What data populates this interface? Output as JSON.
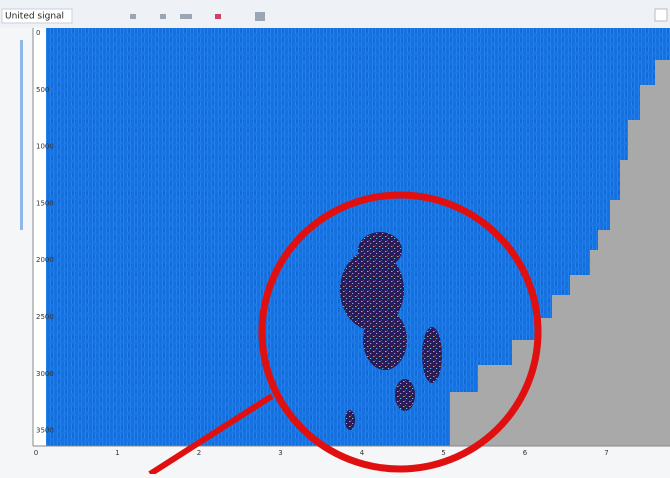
{
  "window": {
    "title": "United signal"
  },
  "axes": {
    "y_labels": [
      0,
      500,
      1000,
      1500,
      2000,
      2500,
      3000,
      3500
    ],
    "x_labels": [
      0,
      1,
      2,
      3,
      4,
      5,
      6,
      7
    ]
  }
}
